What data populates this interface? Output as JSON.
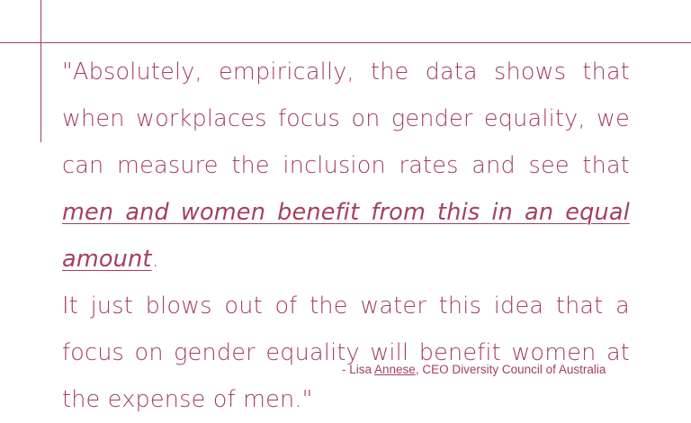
{
  "colors": {
    "accent": "#a3405d",
    "background": "#ffffff"
  },
  "quote": {
    "part1": "\"Absolutely, empirically, the data shows that when workplaces focus on gender equality, we can measure the inclusion rates and see that ",
    "emphasis": "men and women benefit from this in an equal amount",
    "part1_end": ".",
    "part2": "It just blows out of the water this idea that a focus on gender equality will benefit women at the expense of men.\""
  },
  "attribution": {
    "prefix": "- Lisa ",
    "surname": "Annese",
    "suffix": ", CEO Diversity Council of Australia"
  }
}
